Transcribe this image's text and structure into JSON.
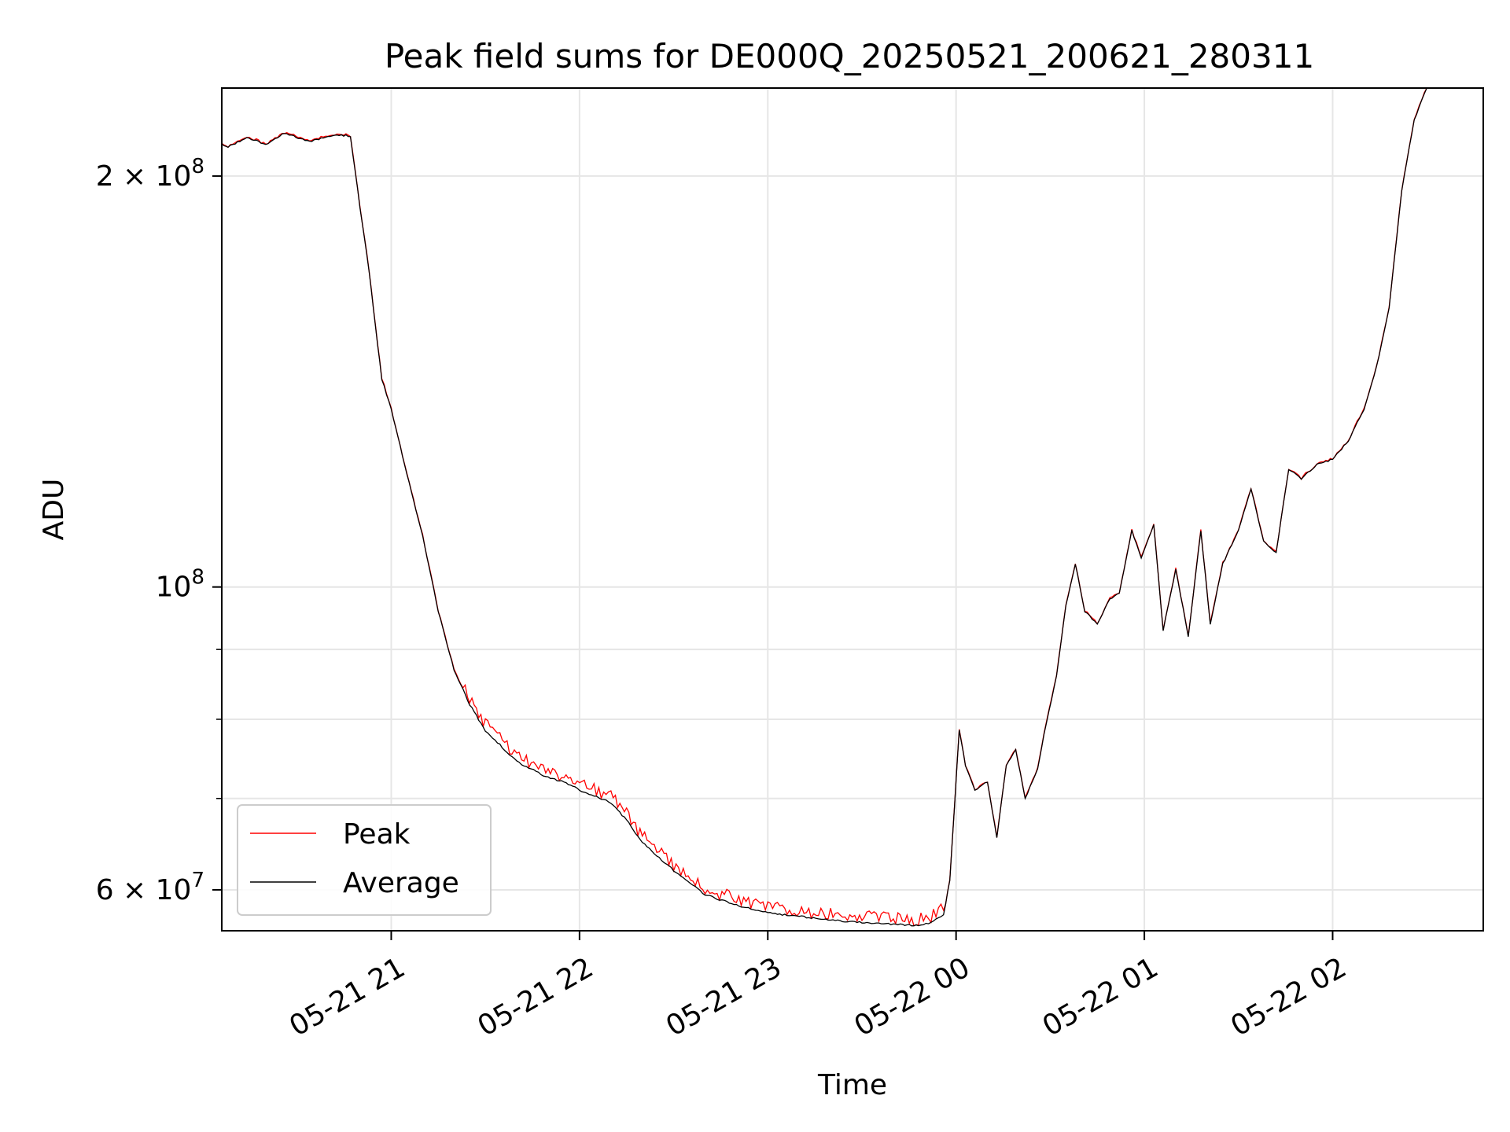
{
  "chart_data": {
    "type": "line",
    "title": "Peak field sums for DE000Q_20250521_200621_280311",
    "xlabel": "Time",
    "ylabel": "ADU",
    "yscale": "log",
    "xlim": [
      "2025-05-21 20:06",
      "2025-05-22 02:48"
    ],
    "ylim": [
      56000000,
      232000000
    ],
    "grid": true,
    "legend_position": "lower-left",
    "x_ticks": [
      {
        "value": "2025-05-21 21:00",
        "label": "05-21 21"
      },
      {
        "value": "2025-05-21 22:00",
        "label": "05-21 22"
      },
      {
        "value": "2025-05-21 23:00",
        "label": "05-21 23"
      },
      {
        "value": "2025-05-22 00:00",
        "label": "05-22 00"
      },
      {
        "value": "2025-05-22 01:00",
        "label": "05-22 01"
      },
      {
        "value": "2025-05-22 02:00",
        "label": "05-22 02"
      }
    ],
    "y_major_ticks": [
      {
        "value": 60000000,
        "mantissa": "6",
        "base": "10",
        "exponent": "7"
      },
      {
        "value": 100000000,
        "mantissa": "",
        "base": "10",
        "exponent": "8"
      },
      {
        "value": 200000000,
        "mantissa": "2",
        "base": "10",
        "exponent": "8"
      }
    ],
    "y_minor_ticks": [
      70000000,
      80000000,
      90000000
    ],
    "series": [
      {
        "name": "Peak",
        "color": "#ff0000"
      },
      {
        "name": "Average",
        "color": "#000000"
      }
    ],
    "x": [
      "2025-05-21 20:06",
      "2025-05-21 20:08",
      "2025-05-21 20:14",
      "2025-05-21 20:20",
      "2025-05-21 20:26",
      "2025-05-21 20:34",
      "2025-05-21 20:42",
      "2025-05-21 20:47",
      "2025-05-21 20:50",
      "2025-05-21 20:53",
      "2025-05-21 20:55",
      "2025-05-21 20:57",
      "2025-05-21 21:00",
      "2025-05-21 21:05",
      "2025-05-21 21:10",
      "2025-05-21 21:15",
      "2025-05-21 21:20",
      "2025-05-21 21:25",
      "2025-05-21 21:30",
      "2025-05-21 21:40",
      "2025-05-21 21:50",
      "2025-05-21 21:55",
      "2025-05-21 22:00",
      "2025-05-21 22:10",
      "2025-05-21 22:15",
      "2025-05-21 22:20",
      "2025-05-21 22:30",
      "2025-05-21 22:40",
      "2025-05-21 22:50",
      "2025-05-21 23:00",
      "2025-05-21 23:10",
      "2025-05-21 23:20",
      "2025-05-21 23:30",
      "2025-05-21 23:40",
      "2025-05-21 23:48",
      "2025-05-21 23:52",
      "2025-05-21 23:56",
      "2025-05-21 23:58",
      "2025-05-22 00:01",
      "2025-05-22 00:03",
      "2025-05-22 00:06",
      "2025-05-22 00:10",
      "2025-05-22 00:13",
      "2025-05-22 00:16",
      "2025-05-22 00:19",
      "2025-05-22 00:22",
      "2025-05-22 00:26",
      "2025-05-22 00:28",
      "2025-05-22 00:32",
      "2025-05-22 00:35",
      "2025-05-22 00:38",
      "2025-05-22 00:41",
      "2025-05-22 00:45",
      "2025-05-22 00:49",
      "2025-05-22 00:52",
      "2025-05-22 00:56",
      "2025-05-22 00:59",
      "2025-05-22 01:03",
      "2025-05-22 01:06",
      "2025-05-22 01:10",
      "2025-05-22 01:14",
      "2025-05-22 01:18",
      "2025-05-22 01:21",
      "2025-05-22 01:25",
      "2025-05-22 01:30",
      "2025-05-22 01:34",
      "2025-05-22 01:38",
      "2025-05-22 01:42",
      "2025-05-22 01:46",
      "2025-05-22 01:50",
      "2025-05-22 01:55",
      "2025-05-22 02:00",
      "2025-05-22 02:05",
      "2025-05-22 02:10",
      "2025-05-22 02:14",
      "2025-05-22 02:18",
      "2025-05-22 02:22",
      "2025-05-22 02:26",
      "2025-05-22 02:30"
    ],
    "y": [
      211000000,
      210000000,
      213500000,
      211000000,
      215000000,
      212000000,
      214500000,
      214000000,
      190000000,
      170000000,
      155000000,
      142000000,
      135000000,
      121000000,
      109000000,
      96000000,
      87000000,
      82000000,
      78500000,
      74500000,
      72500000,
      72000000,
      71000000,
      69500000,
      67500000,
      65000000,
      62000000,
      59500000,
      58500000,
      57700000,
      57400000,
      57000000,
      56800000,
      56600000,
      56500000,
      56800000,
      57500000,
      61000000,
      78500000,
      74000000,
      71000000,
      72000000,
      65500000,
      74000000,
      76000000,
      70000000,
      73500000,
      78000000,
      86000000,
      97000000,
      104000000,
      96000000,
      94000000,
      98000000,
      99000000,
      110000000,
      105000000,
      111000000,
      93000000,
      103000000,
      92000000,
      110000000,
      94000000,
      104000000,
      110000000,
      118000000,
      108000000,
      106000000,
      122000000,
      120000000,
      123000000,
      124000000,
      128000000,
      135000000,
      145000000,
      160000000,
      195000000,
      220000000,
      232000000
    ]
  }
}
